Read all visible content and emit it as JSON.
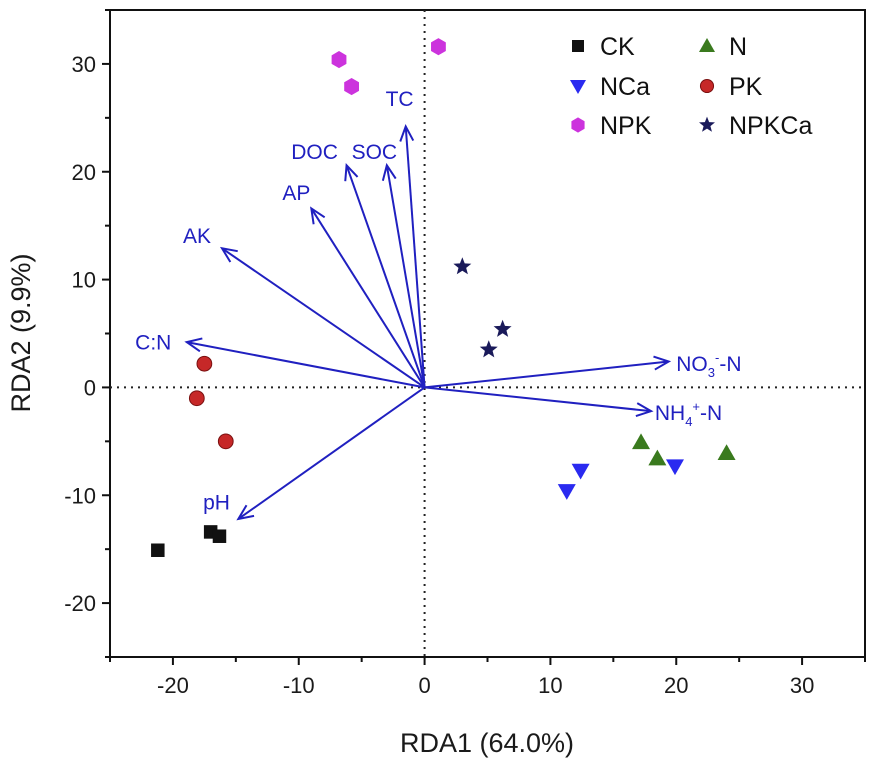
{
  "chart_data": {
    "type": "scatter",
    "xlabel": "RDA1 (64.0%)",
    "ylabel": "RDA2 (9.9%)",
    "xlim": [
      -25,
      35
    ],
    "ylim": [
      -25,
      35
    ],
    "xticks": [
      -20,
      -10,
      0,
      10,
      20,
      30
    ],
    "yticks": [
      -20,
      -10,
      0,
      10,
      20,
      30
    ],
    "xtick_labels": [
      "-20",
      "-10",
      "0",
      "10",
      "20",
      "30"
    ],
    "ytick_labels": [
      "-20",
      "-10",
      "0",
      "10",
      "20",
      "30"
    ],
    "reference_lines": "dotted lines at x=0 and y=0",
    "legend_position": "top-right",
    "series": [
      {
        "name": "CK",
        "marker": "square",
        "color": "#111111",
        "points": [
          [
            -21.2,
            -15.1
          ],
          [
            -17.0,
            -13.4
          ],
          [
            -16.3,
            -13.8
          ]
        ]
      },
      {
        "name": "N",
        "marker": "triangle-up",
        "color": "#3a7a1e",
        "points": [
          [
            17.2,
            -5.1
          ],
          [
            18.5,
            -6.6
          ],
          [
            24.0,
            -6.1
          ]
        ]
      },
      {
        "name": "NCa",
        "marker": "triangle-down",
        "color": "#2a2af0",
        "points": [
          [
            11.3,
            -9.6
          ],
          [
            12.4,
            -7.7
          ],
          [
            19.9,
            -7.3
          ]
        ]
      },
      {
        "name": "PK",
        "marker": "circle",
        "color": "#c62828",
        "points": [
          [
            -17.5,
            2.2
          ],
          [
            -18.1,
            -1.0
          ],
          [
            -15.8,
            -5.0
          ]
        ]
      },
      {
        "name": "NPK",
        "marker": "hexagon",
        "color": "#cc33dd",
        "points": [
          [
            -6.8,
            30.4
          ],
          [
            -5.8,
            27.9
          ],
          [
            1.1,
            31.6
          ]
        ]
      },
      {
        "name": "NPKCa",
        "marker": "star",
        "color": "#1a1a5a",
        "points": [
          [
            3.0,
            11.2
          ],
          [
            6.2,
            5.4
          ],
          [
            5.1,
            3.5
          ]
        ]
      }
    ],
    "vectors": [
      {
        "label": "TC",
        "superscript": "",
        "suffix": "",
        "x": -1.5,
        "y": 24.2,
        "label_x": -3.1,
        "label_y": 26.1
      },
      {
        "label": "SOC",
        "superscript": "",
        "suffix": "",
        "x": -3.0,
        "y": 20.6,
        "label_x": -5.8,
        "label_y": 21.2
      },
      {
        "label": "DOC",
        "superscript": "",
        "suffix": "",
        "x": -6.2,
        "y": 20.6,
        "label_x": -10.6,
        "label_y": 21.2
      },
      {
        "label": "AP",
        "superscript": "",
        "suffix": "",
        "x": -9.0,
        "y": 16.6,
        "label_x": -11.3,
        "label_y": 17.4
      },
      {
        "label": "AK",
        "superscript": "",
        "suffix": "",
        "x": -16.1,
        "y": 12.9,
        "label_x": -19.2,
        "label_y": 13.4
      },
      {
        "label": "C:N",
        "superscript": "",
        "suffix": "",
        "x": -18.9,
        "y": 4.2,
        "label_x": -23.0,
        "label_y": 3.5
      },
      {
        "label": "pH",
        "superscript": "",
        "suffix": "",
        "x": -14.8,
        "y": -12.2,
        "label_x": -17.6,
        "label_y": -11.3
      },
      {
        "label": "NO3",
        "superscript": "-",
        "suffix": "-N",
        "x": 19.4,
        "y": 2.4,
        "label_x": 20.0,
        "label_y": 1.5
      },
      {
        "label": "NH4",
        "superscript": "+",
        "suffix": "-N",
        "x": 18.0,
        "y": -2.2,
        "label_x": 18.3,
        "label_y": -3.0
      }
    ]
  }
}
